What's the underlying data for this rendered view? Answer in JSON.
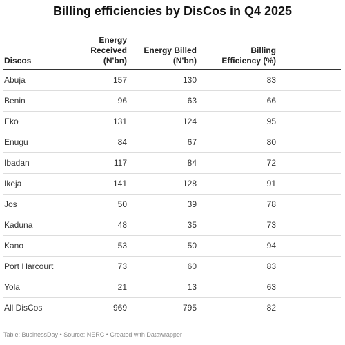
{
  "title": "Billing efficiencies by DisCos in Q4 2025",
  "table": {
    "columns": [
      "Discos",
      "Energy Received (N'bn)",
      "Energy Billed (N'bn)",
      "Billing Efficiency (%)"
    ],
    "rows": [
      [
        "Abuja",
        157,
        130,
        83
      ],
      [
        "Benin",
        96,
        63,
        66
      ],
      [
        "Eko",
        131,
        124,
        95
      ],
      [
        "Enugu",
        84,
        67,
        80
      ],
      [
        "Ibadan",
        117,
        84,
        72
      ],
      [
        "Ikeja",
        141,
        128,
        91
      ],
      [
        "Jos",
        50,
        39,
        78
      ],
      [
        "Kaduna",
        48,
        35,
        73
      ],
      [
        "Kano",
        53,
        50,
        94
      ],
      [
        "Port Harcourt",
        73,
        60,
        83
      ],
      [
        "Yola",
        21,
        13,
        63
      ],
      [
        "All DisCos",
        969,
        795,
        82
      ]
    ]
  },
  "footer": "Table: BusinessDay • Source: NERC • Created with Datawrapper"
}
